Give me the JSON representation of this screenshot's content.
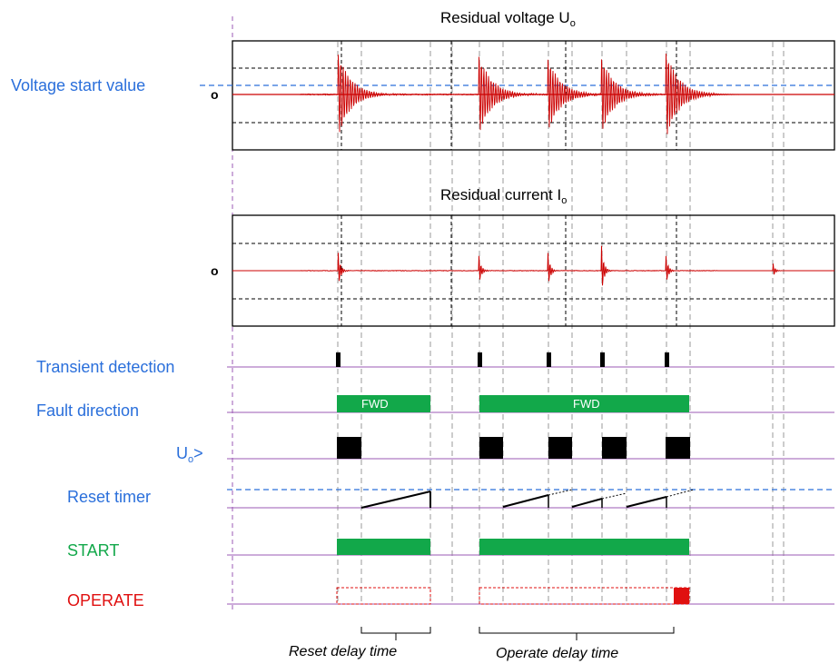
{
  "titles": {
    "voltage_main": "Residual voltage U",
    "voltage_sub": "o",
    "current_main": "Residual current I",
    "current_sub": "o"
  },
  "labels": {
    "voltage_start": "Voltage start value",
    "zero_voltage": "o",
    "zero_current": "o",
    "transient": "Transient detection",
    "fault_dir": "Fault direction",
    "uo_main": "U",
    "uo_sub": "o",
    "uo_suffix": ">",
    "reset_timer": "Reset timer",
    "start": "START",
    "operate": "OPERATE",
    "fwd_1": "FWD",
    "fwd_2": "FWD",
    "reset_delay": "Reset delay time",
    "operate_delay": "Operate delay time"
  },
  "colors": {
    "blue": "#2a6fdb",
    "red": "#e01010",
    "green": "#12a84a",
    "purple": "#9b59b6",
    "signal": "#cc0000",
    "black": "#000000",
    "gray": "#888888"
  }
}
